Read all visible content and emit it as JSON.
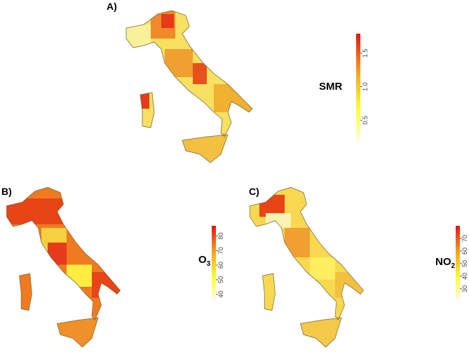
{
  "panels": [
    {
      "label": "A)",
      "legend": {
        "title": {
          "main": "SMR"
        },
        "range": [
          0.18,
          1.79
        ],
        "ticks": [
          {
            "value": 0.5,
            "label": "0.5"
          },
          {
            "value": 1,
            "label": "1.0"
          },
          {
            "value": 1.5,
            "label": "1.5"
          }
        ]
      }
    },
    {
      "label": "B)",
      "legend": {
        "title": {
          "main": "O",
          "sub": "3"
        },
        "range": [
          36,
          87
        ],
        "ticks": [
          40,
          50,
          60,
          70,
          80
        ]
      }
    },
    {
      "label": "C)",
      "legend": {
        "title": {
          "main": "NO",
          "sub": "2"
        },
        "range": [
          21,
          80
        ],
        "ticks": [
          30,
          40,
          50,
          60,
          70
        ]
      }
    }
  ]
}
